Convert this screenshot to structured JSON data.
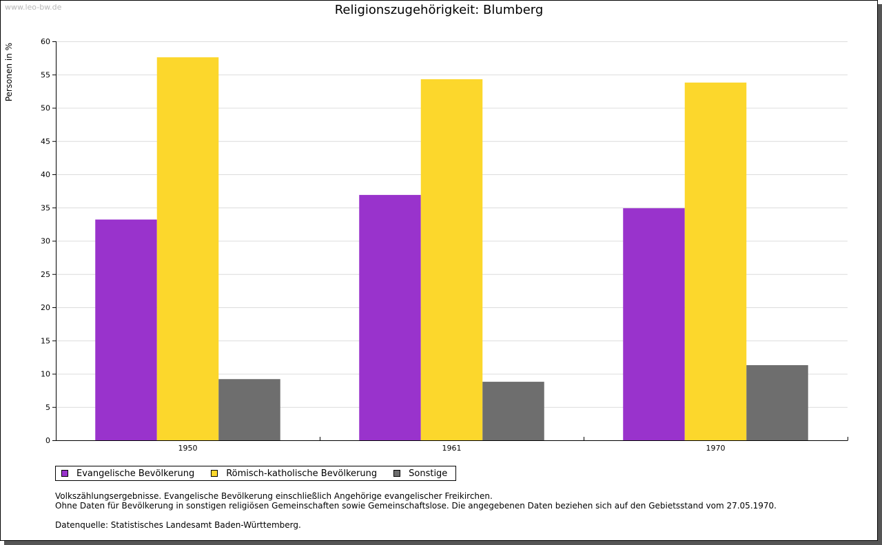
{
  "site": "www.leo-bw.de",
  "title": "Religionszugehörigkeit: Blumberg",
  "chart_data": {
    "type": "bar",
    "title": "Religionszugehörigkeit: Blumberg",
    "xlabel": "",
    "ylabel": "Personen in %",
    "ylim": [
      0,
      60
    ],
    "yticks": [
      0,
      5,
      10,
      15,
      20,
      25,
      30,
      35,
      40,
      45,
      50,
      55,
      60
    ],
    "grid": true,
    "categories": [
      "1950",
      "1961",
      "1970"
    ],
    "series": [
      {
        "name": "Evangelische Bevölkerung",
        "color": "#9933cc",
        "values": [
          33.2,
          36.9,
          34.9
        ]
      },
      {
        "name": "Römisch-katholische Bevölkerung",
        "color": "#fcd72c",
        "values": [
          57.6,
          54.3,
          53.8
        ]
      },
      {
        "name": "Sonstige",
        "color": "#6e6e6e",
        "values": [
          9.2,
          8.8,
          11.3
        ]
      }
    ],
    "legend_position": "bottom-left"
  },
  "notes": {
    "line1": "Volkszählungsergebnisse. Evangelische Bevölkerung einschließlich Angehörige evangelischer Freikirchen.",
    "line2": "Ohne Daten für Bevölkerung in sonstigen religiösen Gemeinschaften sowie Gemeinschaftslose. Die angegebenen Daten beziehen sich auf den Gebietsstand vom 27.05.1970.",
    "source": "Datenquelle: Statistisches Landesamt Baden-Württemberg."
  }
}
